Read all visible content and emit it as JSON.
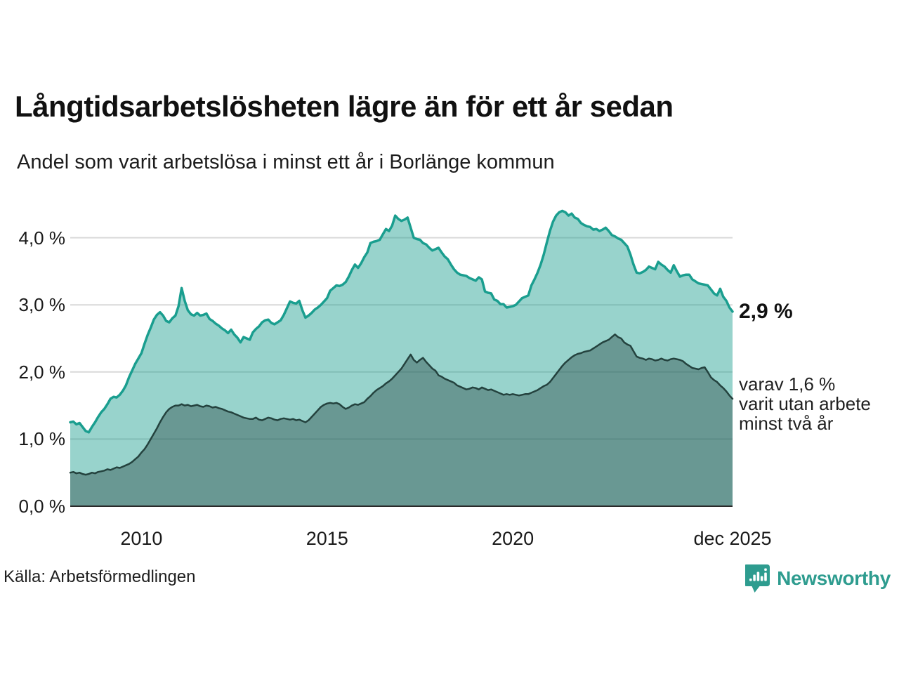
{
  "title": "Långtidsarbetslösheten lägre än för ett år sedan",
  "subtitle": "Andel som varit arbetslösa i minst ett år i Borlänge kommun",
  "source": "Källa: Arbetsförmedlingen",
  "logo": {
    "text": "Newsworthy",
    "icon": "speech-bubble-bar-chart-icon",
    "color": "#2e9c8f"
  },
  "annotations": {
    "total_end_label": "2,9 %",
    "sub_end_label": "varav 1,6 %\nvarit utan arbete\nminst två år"
  },
  "colors": {
    "background": "#ffffff",
    "gridline": "#d9d9d9",
    "axis_line": "#2a2a2a",
    "total_line": "#1a9e8f",
    "total_fill": "rgba(26,158,143,0.45)",
    "sub_line": "#24423e",
    "sub_fill": "rgba(36,66,62,0.40)"
  },
  "chart_data": {
    "type": "area",
    "title": "Långtidsarbetslösheten lägre än för ett år sedan",
    "subtitle": "Andel som varit arbetslösa i minst ett år i Borlänge kommun",
    "x_unit": "time (monthly)",
    "y_unit": "percent",
    "x_start": 2008.083,
    "x_end": 2025.917,
    "ylim": [
      0,
      4.6
    ],
    "grid": "horizontal",
    "x_ticks": [
      {
        "value": 2010,
        "label": "2010"
      },
      {
        "value": 2015,
        "label": "2015"
      },
      {
        "value": 2020,
        "label": "2020"
      },
      {
        "value": 2025.917,
        "label": "dec 2025"
      }
    ],
    "y_ticks": [
      {
        "value": 0,
        "label": "0,0 %"
      },
      {
        "value": 1,
        "label": "1,0 %"
      },
      {
        "value": 2,
        "label": "2,0 %"
      },
      {
        "value": 3,
        "label": "3,0 %"
      },
      {
        "value": 4,
        "label": "4,0 %"
      }
    ],
    "series": [
      {
        "name": "Andel som varit arbetslösa i minst ett år",
        "end_value_label": "2,9 %",
        "stroke": "total_line",
        "fill": "total_fill",
        "stroke_width": 3.5,
        "values": [
          1.25,
          1.26,
          1.22,
          1.24,
          1.18,
          1.12,
          1.1,
          1.18,
          1.25,
          1.33,
          1.4,
          1.45,
          1.52,
          1.6,
          1.63,
          1.62,
          1.66,
          1.72,
          1.8,
          1.92,
          2.02,
          2.12,
          2.2,
          2.28,
          2.42,
          2.55,
          2.66,
          2.78,
          2.85,
          2.89,
          2.84,
          2.76,
          2.74,
          2.8,
          2.84,
          2.98,
          3.25,
          3.06,
          2.92,
          2.86,
          2.84,
          2.88,
          2.84,
          2.85,
          2.87,
          2.79,
          2.76,
          2.72,
          2.69,
          2.65,
          2.62,
          2.58,
          2.63,
          2.56,
          2.51,
          2.44,
          2.52,
          2.5,
          2.48,
          2.59,
          2.64,
          2.68,
          2.74,
          2.77,
          2.78,
          2.73,
          2.71,
          2.74,
          2.77,
          2.85,
          2.95,
          3.05,
          3.03,
          3.02,
          3.06,
          2.92,
          2.81,
          2.84,
          2.88,
          2.93,
          2.96,
          3.0,
          3.05,
          3.1,
          3.21,
          3.25,
          3.29,
          3.28,
          3.3,
          3.34,
          3.42,
          3.52,
          3.6,
          3.55,
          3.62,
          3.71,
          3.78,
          3.92,
          3.94,
          3.95,
          3.97,
          4.05,
          4.13,
          4.1,
          4.18,
          4.33,
          4.28,
          4.25,
          4.27,
          4.3,
          4.15,
          4.0,
          3.98,
          3.97,
          3.92,
          3.9,
          3.85,
          3.81,
          3.83,
          3.85,
          3.78,
          3.72,
          3.68,
          3.6,
          3.53,
          3.48,
          3.45,
          3.44,
          3.43,
          3.4,
          3.38,
          3.36,
          3.41,
          3.38,
          3.2,
          3.18,
          3.17,
          3.08,
          3.06,
          3.01,
          3.01,
          2.96,
          2.97,
          2.98,
          3.0,
          3.05,
          3.1,
          3.12,
          3.14,
          3.29,
          3.38,
          3.48,
          3.6,
          3.75,
          3.93,
          4.1,
          4.24,
          4.33,
          4.38,
          4.4,
          4.38,
          4.33,
          4.36,
          4.3,
          4.28,
          4.22,
          4.19,
          4.17,
          4.16,
          4.12,
          4.13,
          4.1,
          4.12,
          4.15,
          4.1,
          4.04,
          4.02,
          3.99,
          3.97,
          3.92,
          3.87,
          3.75,
          3.6,
          3.48,
          3.47,
          3.49,
          3.52,
          3.57,
          3.55,
          3.53,
          3.64,
          3.6,
          3.57,
          3.52,
          3.48,
          3.59,
          3.5,
          3.42,
          3.44,
          3.45,
          3.45,
          3.38,
          3.35,
          3.32,
          3.31,
          3.3,
          3.29,
          3.23,
          3.17,
          3.14,
          3.24,
          3.12,
          3.06,
          2.96,
          2.9
        ]
      },
      {
        "name": "varav utan arbete minst två år",
        "end_value_label": "1,6 %",
        "stroke": "sub_line",
        "fill": "sub_fill",
        "stroke_width": 2.5,
        "values": [
          0.5,
          0.51,
          0.49,
          0.5,
          0.48,
          0.47,
          0.48,
          0.5,
          0.49,
          0.51,
          0.52,
          0.53,
          0.55,
          0.54,
          0.56,
          0.58,
          0.57,
          0.59,
          0.61,
          0.63,
          0.66,
          0.7,
          0.74,
          0.8,
          0.85,
          0.92,
          1.0,
          1.08,
          1.16,
          1.25,
          1.33,
          1.4,
          1.45,
          1.48,
          1.5,
          1.5,
          1.52,
          1.5,
          1.51,
          1.49,
          1.5,
          1.51,
          1.49,
          1.48,
          1.5,
          1.49,
          1.47,
          1.48,
          1.46,
          1.45,
          1.43,
          1.41,
          1.4,
          1.38,
          1.36,
          1.34,
          1.32,
          1.31,
          1.3,
          1.3,
          1.32,
          1.29,
          1.28,
          1.3,
          1.32,
          1.31,
          1.29,
          1.28,
          1.3,
          1.31,
          1.3,
          1.29,
          1.3,
          1.28,
          1.29,
          1.27,
          1.25,
          1.28,
          1.33,
          1.38,
          1.43,
          1.48,
          1.51,
          1.53,
          1.54,
          1.53,
          1.54,
          1.52,
          1.48,
          1.45,
          1.47,
          1.5,
          1.52,
          1.51,
          1.53,
          1.55,
          1.6,
          1.64,
          1.69,
          1.73,
          1.76,
          1.79,
          1.83,
          1.86,
          1.9,
          1.95,
          2.0,
          2.05,
          2.12,
          2.19,
          2.26,
          2.18,
          2.14,
          2.18,
          2.21,
          2.15,
          2.1,
          2.05,
          2.02,
          1.95,
          1.93,
          1.9,
          1.88,
          1.86,
          1.84,
          1.8,
          1.78,
          1.76,
          1.74,
          1.75,
          1.77,
          1.76,
          1.74,
          1.77,
          1.75,
          1.73,
          1.74,
          1.72,
          1.7,
          1.68,
          1.66,
          1.67,
          1.66,
          1.67,
          1.66,
          1.65,
          1.66,
          1.67,
          1.67,
          1.69,
          1.71,
          1.73,
          1.76,
          1.79,
          1.81,
          1.85,
          1.91,
          1.97,
          2.03,
          2.09,
          2.14,
          2.18,
          2.22,
          2.25,
          2.27,
          2.28,
          2.3,
          2.31,
          2.32,
          2.35,
          2.38,
          2.41,
          2.44,
          2.46,
          2.48,
          2.52,
          2.56,
          2.52,
          2.5,
          2.44,
          2.41,
          2.39,
          2.31,
          2.23,
          2.21,
          2.2,
          2.18,
          2.2,
          2.19,
          2.17,
          2.18,
          2.2,
          2.18,
          2.17,
          2.19,
          2.2,
          2.19,
          2.18,
          2.16,
          2.12,
          2.09,
          2.06,
          2.05,
          2.04,
          2.06,
          2.07,
          2.0,
          1.92,
          1.88,
          1.85,
          1.8,
          1.76,
          1.71,
          1.65,
          1.6
        ]
      }
    ]
  }
}
